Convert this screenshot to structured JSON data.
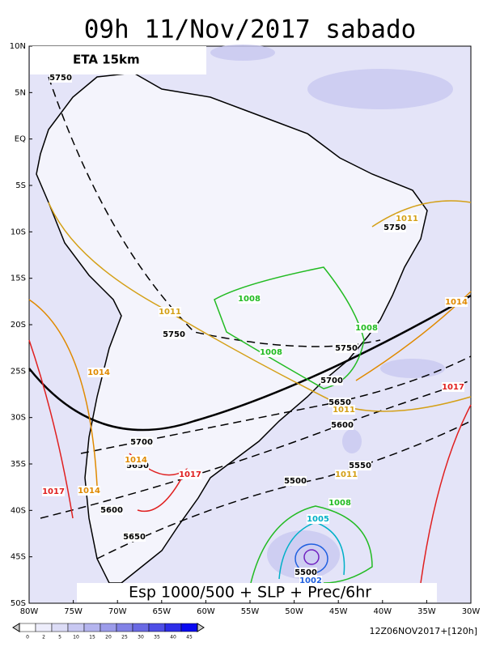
{
  "header": {
    "title": "09h 11/Nov/2017 sabado",
    "model": "ETA 15km"
  },
  "map": {
    "lat_labels": [
      "10N",
      "5N",
      "EQ",
      "5S",
      "10S",
      "15S",
      "20S",
      "25S",
      "30S",
      "35S",
      "40S",
      "45S",
      "50S"
    ],
    "lon_labels": [
      "80W",
      "75W",
      "70W",
      "65W",
      "60W",
      "55W",
      "50W",
      "45W",
      "40W",
      "35W",
      "30W"
    ],
    "contour_labels": [
      {
        "value": 5750,
        "color": "#000000"
      },
      {
        "value": 5750,
        "color": "#000000"
      },
      {
        "value": 5750,
        "color": "#000000"
      },
      {
        "value": 5750,
        "color": "#000000"
      },
      {
        "value": 5700,
        "color": "#000000"
      },
      {
        "value": 5700,
        "color": "#000000"
      },
      {
        "value": 5650,
        "color": "#000000"
      },
      {
        "value": 5650,
        "color": "#000000"
      },
      {
        "value": 5650,
        "color": "#000000"
      },
      {
        "value": 5600,
        "color": "#000000"
      },
      {
        "value": 5600,
        "color": "#000000"
      },
      {
        "value": 5550,
        "color": "#000000"
      },
      {
        "value": 5500,
        "color": "#000000"
      },
      {
        "value": 5500,
        "color": "#000000"
      },
      {
        "value": 1011,
        "color": "#d4a017"
      },
      {
        "value": 1008,
        "color": "#22bb22"
      },
      {
        "value": 1008,
        "color": "#22bb22"
      },
      {
        "value": 1008,
        "color": "#22bb22"
      },
      {
        "value": 1014,
        "color": "#e08a00"
      },
      {
        "value": 1011,
        "color": "#d4a017"
      },
      {
        "value": 1014,
        "color": "#e08a00"
      },
      {
        "value": 1011,
        "color": "#d4a017"
      },
      {
        "value": 1017,
        "color": "#e02020"
      },
      {
        "value": 1014,
        "color": "#e08a00"
      },
      {
        "value": 1017,
        "color": "#e02020"
      },
      {
        "value": 1017,
        "color": "#e02020"
      },
      {
        "value": 1014,
        "color": "#e08a00"
      },
      {
        "value": 1011,
        "color": "#d4a017"
      },
      {
        "value": 1008,
        "color": "#22bb22"
      },
      {
        "value": 1005,
        "color": "#00b0c8"
      },
      {
        "value": 1002,
        "color": "#2060e0"
      }
    ]
  },
  "footer": {
    "caption": "Esp 1000/500 + SLP + Prec/6hr",
    "run": "12Z06NOV2017+[120h]"
  },
  "colorbar": {
    "labels": [
      0,
      2,
      5,
      10,
      15,
      20,
      25,
      30,
      35,
      40,
      45
    ],
    "colors": [
      "#ffffff",
      "#ededfb",
      "#dcdcf6",
      "#c8c8f2",
      "#b4b4ee",
      "#9c9cea",
      "#8282e6",
      "#6a6ae4",
      "#4e4ee6",
      "#2e2ee8",
      "#0a0af0"
    ]
  }
}
